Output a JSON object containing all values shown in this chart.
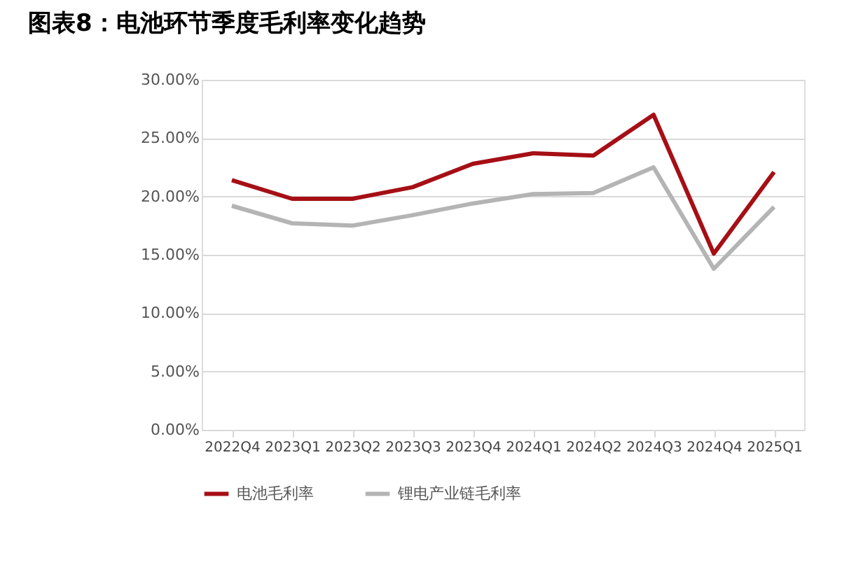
{
  "chart_data": {
    "type": "line",
    "title": "图表8：电池环节季度毛利率变化趋势",
    "categories": [
      "2022Q4",
      "2023Q1",
      "2023Q2",
      "2023Q3",
      "2023Q4",
      "2024Q1",
      "2024Q2",
      "2024Q3",
      "2024Q4",
      "2025Q1"
    ],
    "series": [
      {
        "name": "电池毛利率",
        "color": "#a50f15",
        "values": [
          21.4,
          19.8,
          19.8,
          20.8,
          22.8,
          23.7,
          23.5,
          27.0,
          15.1,
          22.1
        ]
      },
      {
        "name": "锂电产业链毛利率",
        "color": "#b4b4b4",
        "values": [
          19.2,
          17.7,
          17.5,
          18.4,
          19.4,
          20.2,
          20.3,
          22.5,
          13.8,
          19.1
        ]
      }
    ],
    "ylim": [
      0,
      30
    ],
    "yticks": [
      {
        "value": 0,
        "label": "0.00%"
      },
      {
        "value": 5,
        "label": "5.00%"
      },
      {
        "value": 10,
        "label": "10.00%"
      },
      {
        "value": 15,
        "label": "15.00%"
      },
      {
        "value": 20,
        "label": "20.00%"
      },
      {
        "value": 25,
        "label": "25.00%"
      },
      {
        "value": 30,
        "label": "30.00%"
      }
    ],
    "grid": "y",
    "legend": "bottom",
    "marker": "none",
    "line_style": "solid"
  }
}
